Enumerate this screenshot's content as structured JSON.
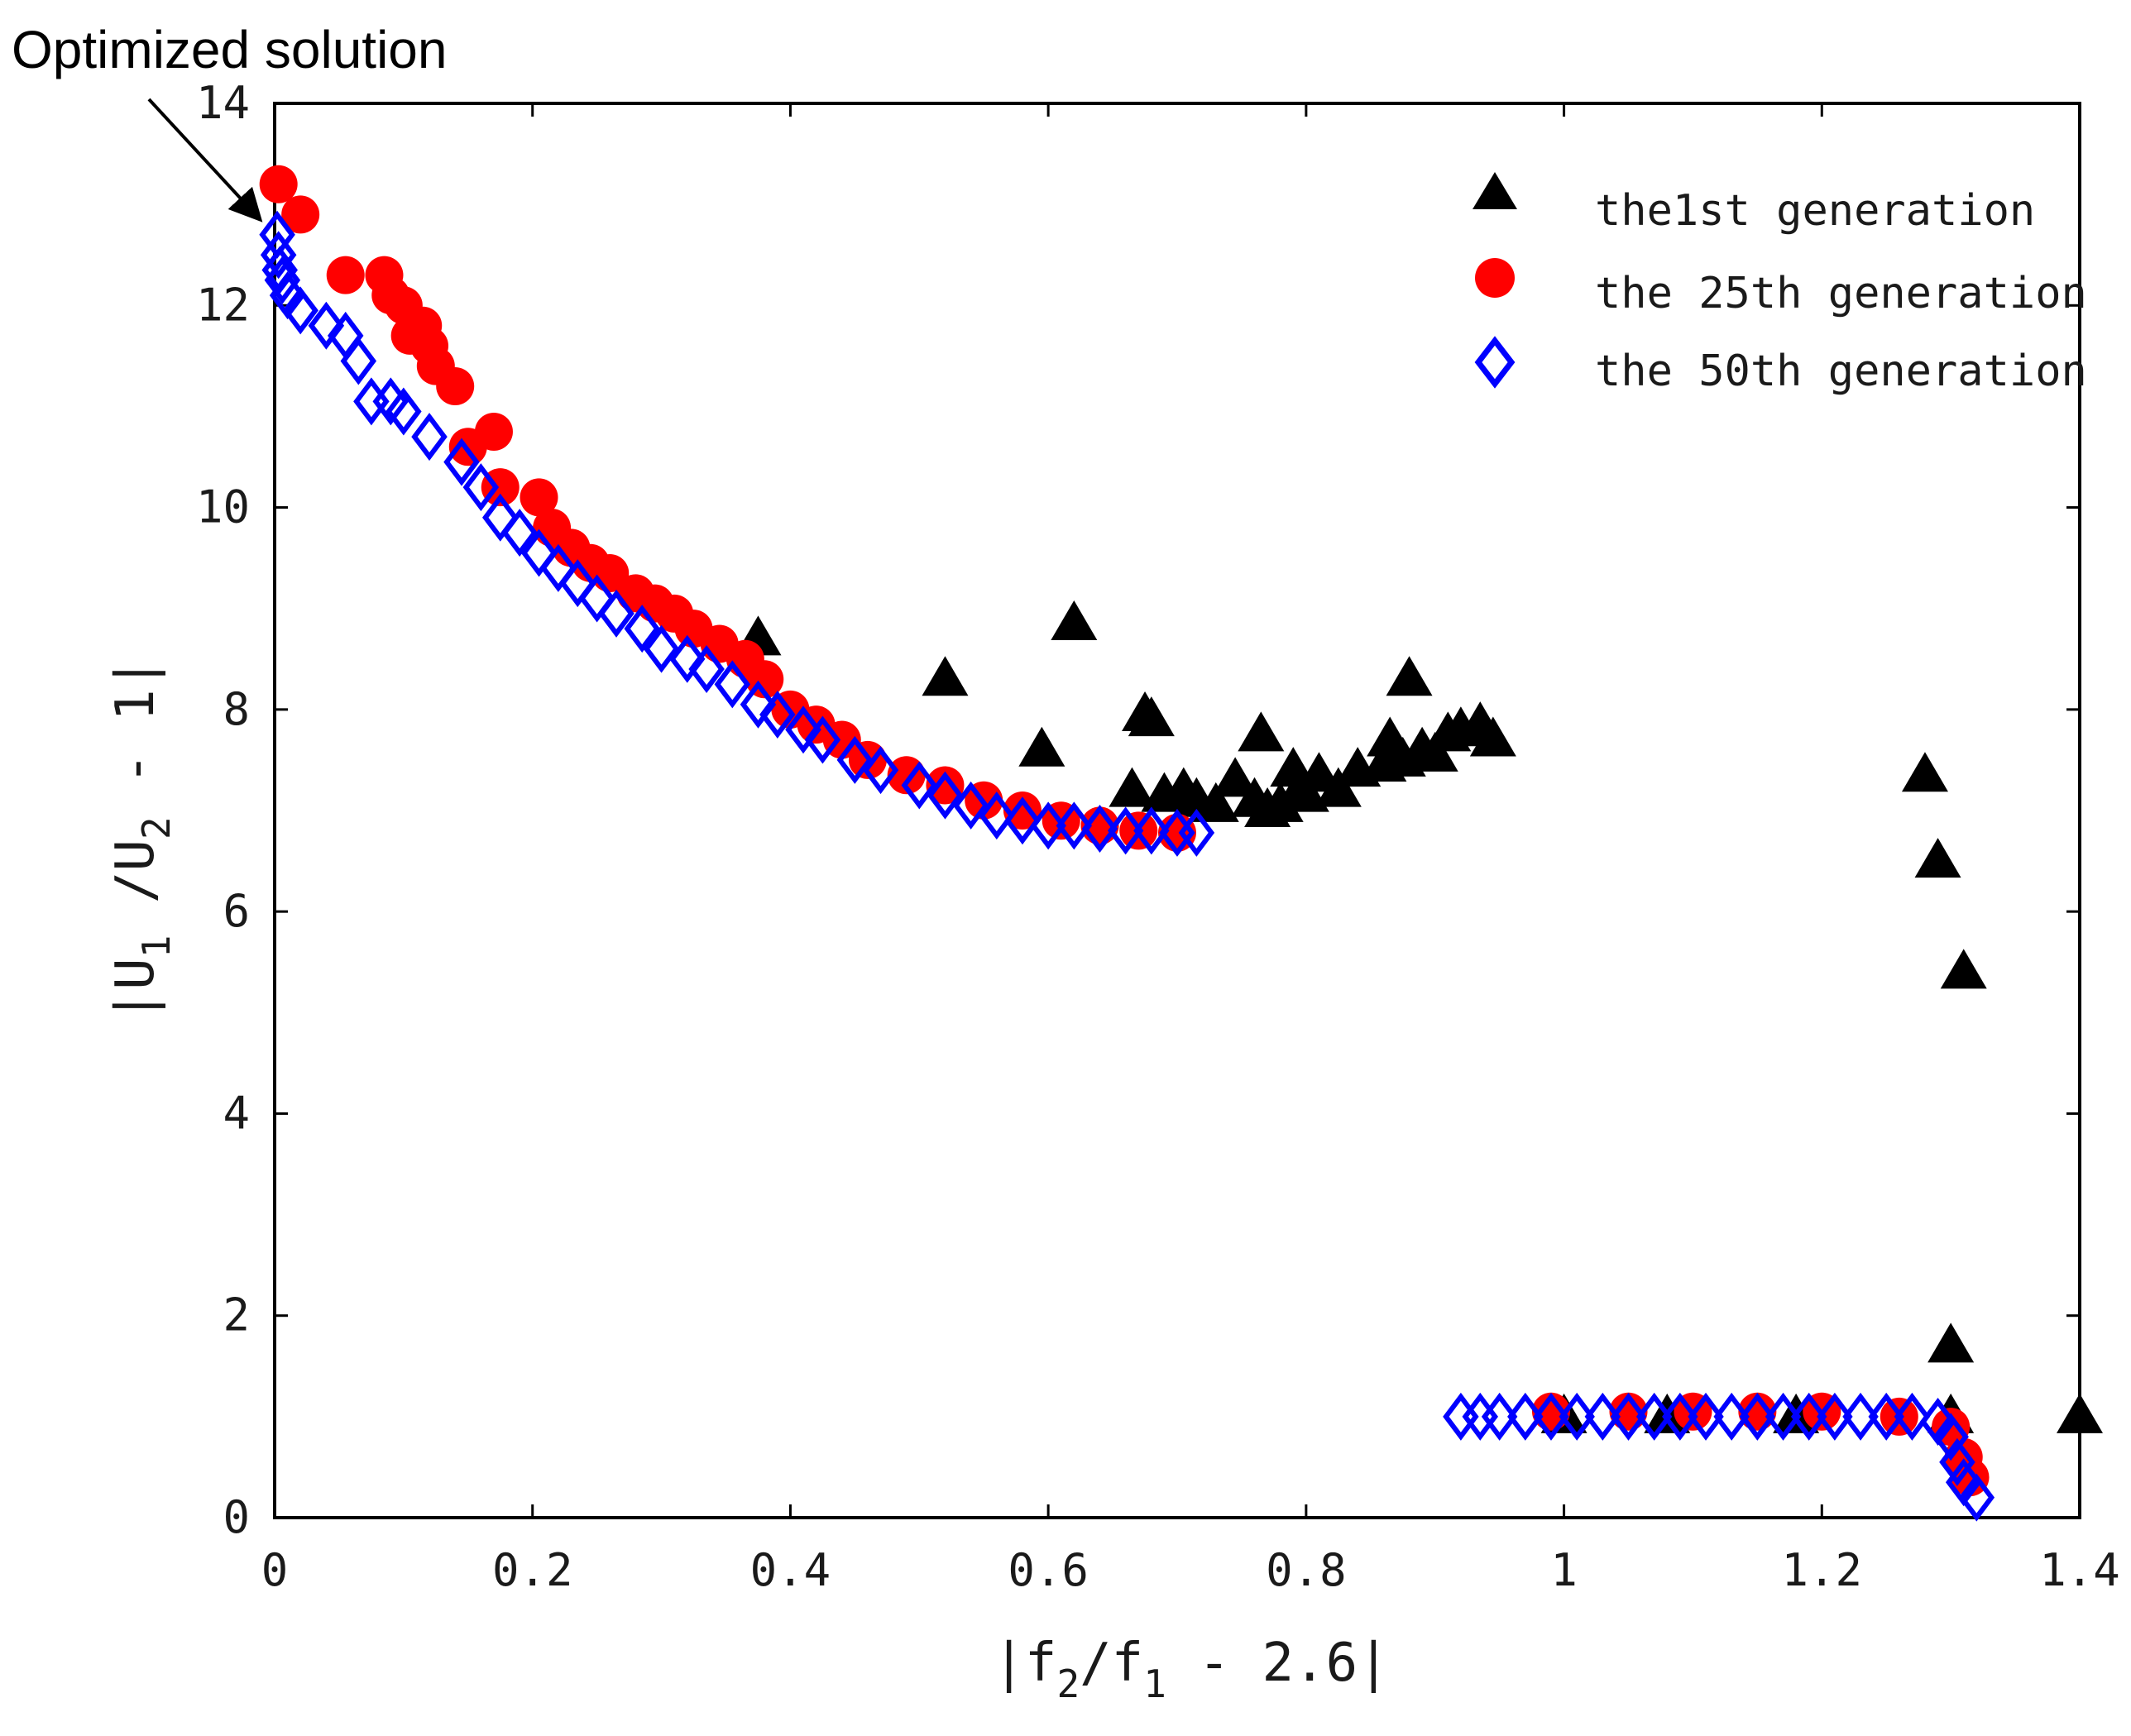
{
  "chart_data": {
    "type": "scatter",
    "title": "",
    "xlabel": "|f2/f1 - 2.6|",
    "ylabel": "|U1/U2 - 1|",
    "xlabel_parts": {
      "bar_l": "|",
      "main": "f",
      "sub1": "2",
      "mid": "/f",
      "sub2": "1",
      "tail": " - 2.6",
      "bar_r": "|"
    },
    "ylabel_parts": {
      "bar_l": "|",
      "main": "U",
      "sub1": "1",
      "mid": " /U",
      "sub2": "2",
      "tail": " - 1",
      "bar_r": "|"
    },
    "xlim": [
      0,
      1.4
    ],
    "ylim": [
      0,
      14
    ],
    "xticks": [
      0,
      0.2,
      0.4,
      0.6,
      0.8,
      1,
      1.2,
      1.4
    ],
    "xtick_labels": [
      "0",
      "0.2",
      "0.4",
      "0.6",
      "0.8",
      "1",
      "1.2",
      "1.4"
    ],
    "yticks": [
      0,
      2,
      4,
      6,
      8,
      10,
      12,
      14
    ],
    "ytick_labels": [
      "0",
      "2",
      "4",
      "6",
      "8",
      "10",
      "12",
      "14"
    ],
    "grid": false,
    "legend_position": "top-right",
    "annotation": {
      "text": "Optimized solution",
      "points_to": [
        0.003,
        12.7
      ]
    },
    "series": [
      {
        "name": "the1st generation",
        "marker": "triangle",
        "color": "#000000",
        "points": [
          [
            0.375,
            8.7
          ],
          [
            0.52,
            8.3
          ],
          [
            0.595,
            7.6
          ],
          [
            0.62,
            8.85
          ],
          [
            0.675,
            7.95
          ],
          [
            0.68,
            7.9
          ],
          [
            0.665,
            7.2
          ],
          [
            0.69,
            7.15
          ],
          [
            0.705,
            7.2
          ],
          [
            0.715,
            7.1
          ],
          [
            0.73,
            7.05
          ],
          [
            0.745,
            7.3
          ],
          [
            0.76,
            7.1
          ],
          [
            0.765,
            7.75
          ],
          [
            0.77,
            7.0
          ],
          [
            0.78,
            7.05
          ],
          [
            0.79,
            7.4
          ],
          [
            0.795,
            7.2
          ],
          [
            0.8,
            7.15
          ],
          [
            0.81,
            7.35
          ],
          [
            0.825,
            7.2
          ],
          [
            0.84,
            7.4
          ],
          [
            0.86,
            7.45
          ],
          [
            0.865,
            7.7
          ],
          [
            0.875,
            7.5
          ],
          [
            0.88,
            8.3
          ],
          [
            0.89,
            7.6
          ],
          [
            0.9,
            7.55
          ],
          [
            0.91,
            7.75
          ],
          [
            0.92,
            7.8
          ],
          [
            0.935,
            7.85
          ],
          [
            0.945,
            7.7
          ],
          [
            1.0,
            1.0
          ],
          [
            1.08,
            1.0
          ],
          [
            1.18,
            1.0
          ],
          [
            1.3,
            1.0
          ],
          [
            1.28,
            7.35
          ],
          [
            1.29,
            6.5
          ],
          [
            1.31,
            5.4
          ],
          [
            1.3,
            1.7
          ],
          [
            1.4,
            1.0
          ]
        ]
      },
      {
        "name": "the 25th generation",
        "marker": "circle",
        "color": "#ff0000",
        "points": [
          [
            0.003,
            13.2
          ],
          [
            0.02,
            12.9
          ],
          [
            0.055,
            12.3
          ],
          [
            0.085,
            12.3
          ],
          [
            0.09,
            12.1
          ],
          [
            0.1,
            12.0
          ],
          [
            0.105,
            11.7
          ],
          [
            0.115,
            11.8
          ],
          [
            0.12,
            11.6
          ],
          [
            0.125,
            11.4
          ],
          [
            0.14,
            11.2
          ],
          [
            0.15,
            10.6
          ],
          [
            0.17,
            10.75
          ],
          [
            0.175,
            10.2
          ],
          [
            0.205,
            10.1
          ],
          [
            0.215,
            9.8
          ],
          [
            0.23,
            9.6
          ],
          [
            0.245,
            9.45
          ],
          [
            0.26,
            9.35
          ],
          [
            0.28,
            9.15
          ],
          [
            0.295,
            9.05
          ],
          [
            0.31,
            8.95
          ],
          [
            0.325,
            8.8
          ],
          [
            0.345,
            8.65
          ],
          [
            0.365,
            8.5
          ],
          [
            0.38,
            8.3
          ],
          [
            0.4,
            8.0
          ],
          [
            0.42,
            7.85
          ],
          [
            0.44,
            7.7
          ],
          [
            0.46,
            7.5
          ],
          [
            0.49,
            7.35
          ],
          [
            0.52,
            7.25
          ],
          [
            0.55,
            7.1
          ],
          [
            0.58,
            7.0
          ],
          [
            0.61,
            6.9
          ],
          [
            0.64,
            6.85
          ],
          [
            0.67,
            6.8
          ],
          [
            0.7,
            6.78
          ],
          [
            0.99,
            1.05
          ],
          [
            1.05,
            1.05
          ],
          [
            1.1,
            1.05
          ],
          [
            1.15,
            1.05
          ],
          [
            1.2,
            1.05
          ],
          [
            1.26,
            1.0
          ],
          [
            1.3,
            0.9
          ],
          [
            1.31,
            0.6
          ],
          [
            1.315,
            0.4
          ]
        ]
      },
      {
        "name": "the 50th generation",
        "marker": "diamond",
        "color": "#0000ff",
        "points": [
          [
            0.002,
            12.7
          ],
          [
            0.003,
            12.5
          ],
          [
            0.004,
            12.35
          ],
          [
            0.006,
            12.25
          ],
          [
            0.01,
            12.1
          ],
          [
            0.02,
            11.95
          ],
          [
            0.04,
            11.8
          ],
          [
            0.055,
            11.7
          ],
          [
            0.065,
            11.45
          ],
          [
            0.075,
            11.05
          ],
          [
            0.09,
            11.05
          ],
          [
            0.1,
            10.95
          ],
          [
            0.12,
            10.7
          ],
          [
            0.145,
            10.45
          ],
          [
            0.16,
            10.2
          ],
          [
            0.175,
            9.9
          ],
          [
            0.19,
            9.75
          ],
          [
            0.205,
            9.55
          ],
          [
            0.22,
            9.4
          ],
          [
            0.235,
            9.25
          ],
          [
            0.25,
            9.1
          ],
          [
            0.265,
            8.95
          ],
          [
            0.285,
            8.8
          ],
          [
            0.3,
            8.6
          ],
          [
            0.32,
            8.5
          ],
          [
            0.335,
            8.4
          ],
          [
            0.355,
            8.25
          ],
          [
            0.375,
            8.05
          ],
          [
            0.39,
            7.95
          ],
          [
            0.41,
            7.8
          ],
          [
            0.425,
            7.7
          ],
          [
            0.45,
            7.5
          ],
          [
            0.47,
            7.4
          ],
          [
            0.5,
            7.25
          ],
          [
            0.52,
            7.15
          ],
          [
            0.54,
            7.05
          ],
          [
            0.56,
            6.95
          ],
          [
            0.58,
            6.9
          ],
          [
            0.6,
            6.85
          ],
          [
            0.62,
            6.85
          ],
          [
            0.64,
            6.82
          ],
          [
            0.66,
            6.8
          ],
          [
            0.68,
            6.8
          ],
          [
            0.7,
            6.78
          ],
          [
            0.715,
            6.78
          ],
          [
            0.92,
            1.0
          ],
          [
            0.935,
            1.0
          ],
          [
            0.95,
            1.0
          ],
          [
            0.97,
            1.0
          ],
          [
            0.99,
            1.0
          ],
          [
            1.01,
            1.0
          ],
          [
            1.03,
            1.0
          ],
          [
            1.05,
            1.0
          ],
          [
            1.07,
            1.0
          ],
          [
            1.09,
            1.0
          ],
          [
            1.11,
            1.0
          ],
          [
            1.13,
            1.0
          ],
          [
            1.15,
            1.0
          ],
          [
            1.17,
            1.0
          ],
          [
            1.19,
            1.0
          ],
          [
            1.21,
            1.0
          ],
          [
            1.23,
            1.0
          ],
          [
            1.25,
            1.0
          ],
          [
            1.27,
            1.0
          ],
          [
            1.29,
            0.95
          ],
          [
            1.3,
            0.8
          ],
          [
            1.305,
            0.55
          ],
          [
            1.31,
            0.35
          ],
          [
            1.32,
            0.2
          ]
        ]
      }
    ]
  }
}
